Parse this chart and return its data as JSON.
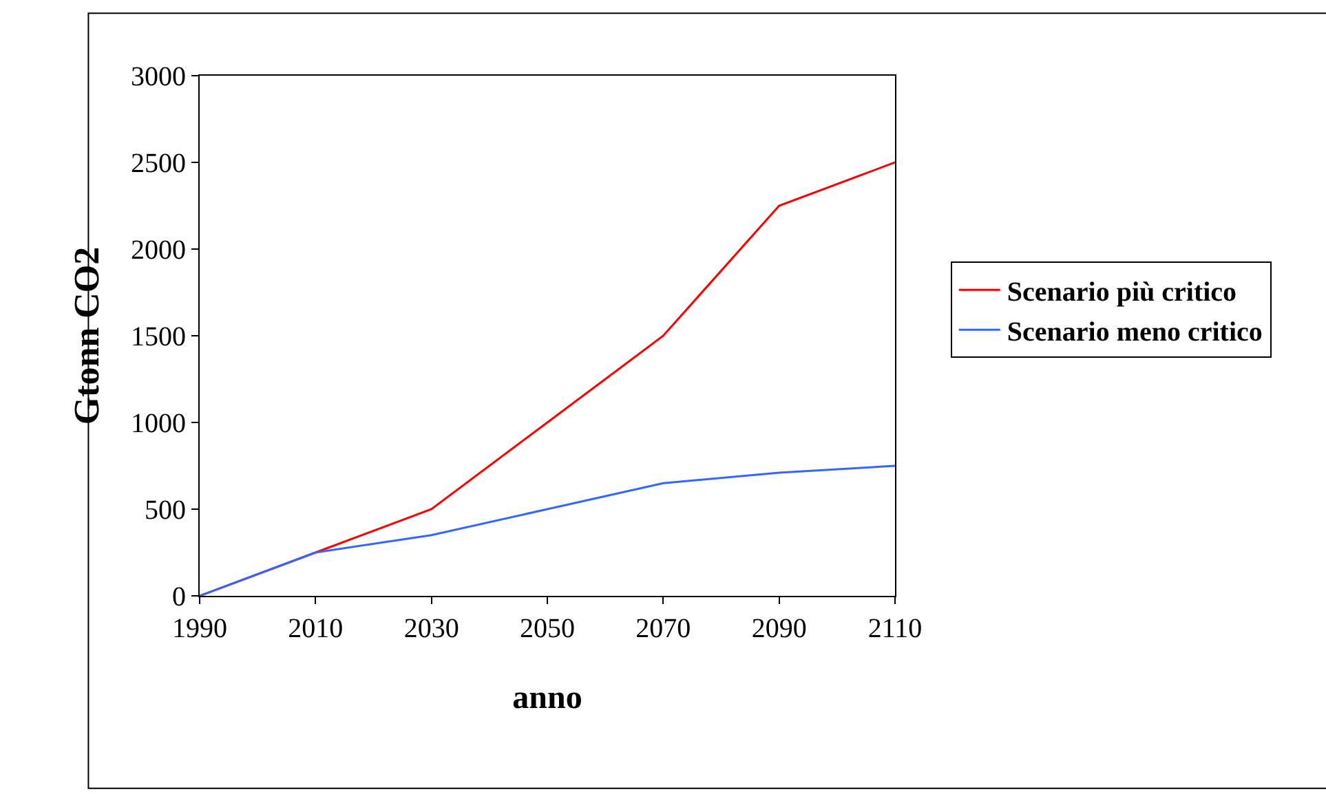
{
  "chart_data": {
    "type": "line",
    "xlabel": "anno",
    "ylabel": "Gtonn CO2",
    "x": [
      1990,
      2010,
      2030,
      2050,
      2070,
      2090,
      2110
    ],
    "series": [
      {
        "name": "Scenario più critico",
        "color": "#ff0000",
        "values": [
          0,
          250,
          500,
          1000,
          1500,
          2250,
          2500
        ]
      },
      {
        "name": "Scenario meno critico",
        "color": "#3366ff",
        "values": [
          0,
          250,
          350,
          500,
          650,
          710,
          750
        ]
      }
    ],
    "xlim": [
      1990,
      2110
    ],
    "xticks": [
      1990,
      2010,
      2030,
      2050,
      2070,
      2090,
      2110
    ],
    "ylim": [
      0,
      3000
    ],
    "yticks": [
      0,
      500,
      1000,
      1500,
      2000,
      2500,
      3000
    ],
    "legend": "right",
    "marker": "none",
    "line_style": "solid"
  }
}
